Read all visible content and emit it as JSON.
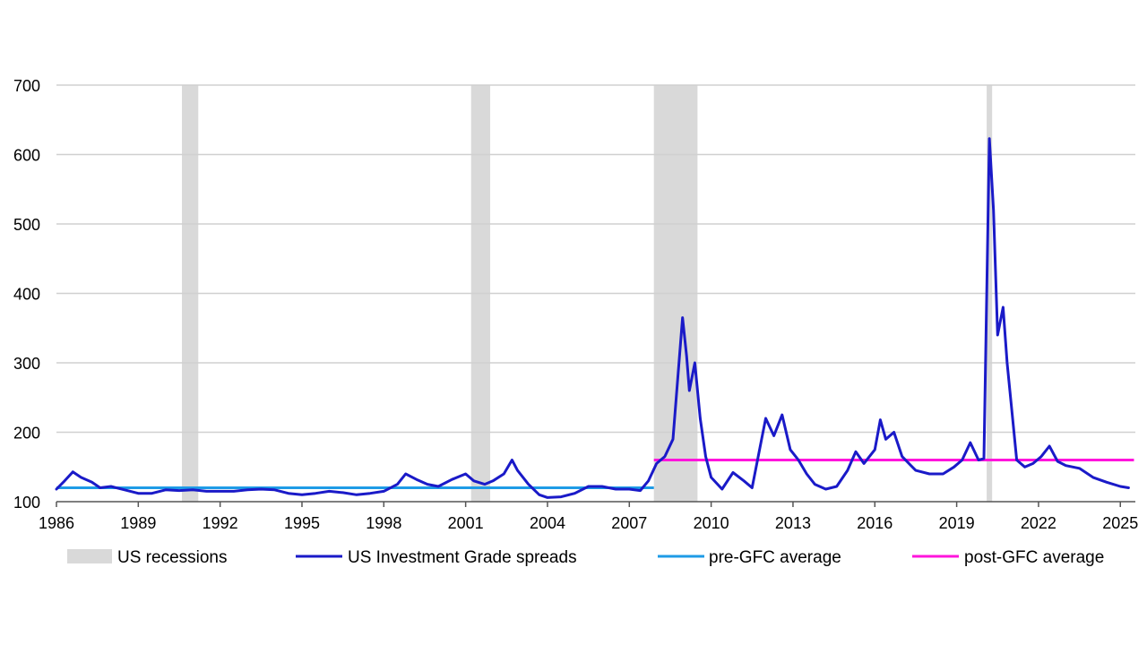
{
  "chart_data": {
    "type": "line",
    "title": "",
    "xlabel": "",
    "ylabel": "",
    "xlim": [
      1986,
      2025.5
    ],
    "ylim": [
      100,
      700
    ],
    "grid": true,
    "legend_position": "bottom",
    "y_ticks": [
      100,
      200,
      300,
      400,
      500,
      600,
      700
    ],
    "x_ticks": [
      1986,
      1989,
      1992,
      1995,
      1998,
      2001,
      2004,
      2007,
      2010,
      2013,
      2016,
      2019,
      2022,
      2025
    ],
    "legend": {
      "recessions": "US recessions",
      "spreads": "US Investment Grade spreads",
      "pre_gfc": "pre-GFC average",
      "post_gfc": "post-GFC average"
    },
    "colors": {
      "recessions": "#d9d9d9",
      "spreads": "#1a1ac8",
      "pre_gfc": "#1e9be6",
      "post_gfc": "#ff14dc",
      "grid": "#d0d0d0",
      "axis": "#555555"
    },
    "recessions": [
      {
        "start": 1990.6,
        "end": 1991.2
      },
      {
        "start": 2001.2,
        "end": 2001.9
      },
      {
        "start": 2007.9,
        "end": 2009.5
      },
      {
        "start": 2020.1,
        "end": 2020.3
      }
    ],
    "pre_gfc_average": {
      "start": 1986.0,
      "end": 2007.9,
      "value": 120
    },
    "post_gfc_average": {
      "start": 2007.9,
      "end": 2025.5,
      "value": 160
    },
    "series": [
      {
        "name": "US Investment Grade spreads",
        "points": [
          [
            1986.0,
            118
          ],
          [
            1986.3,
            130
          ],
          [
            1986.6,
            143
          ],
          [
            1986.9,
            135
          ],
          [
            1987.3,
            128
          ],
          [
            1987.6,
            120
          ],
          [
            1988.0,
            122
          ],
          [
            1988.5,
            117
          ],
          [
            1989.0,
            112
          ],
          [
            1989.5,
            112
          ],
          [
            1990.0,
            117
          ],
          [
            1990.5,
            116
          ],
          [
            1991.0,
            117
          ],
          [
            1991.5,
            115
          ],
          [
            1992.0,
            115
          ],
          [
            1992.5,
            115
          ],
          [
            1993.0,
            117
          ],
          [
            1993.5,
            118
          ],
          [
            1994.0,
            117
          ],
          [
            1994.5,
            112
          ],
          [
            1995.0,
            110
          ],
          [
            1995.5,
            112
          ],
          [
            1996.0,
            115
          ],
          [
            1996.5,
            113
          ],
          [
            1997.0,
            110
          ],
          [
            1997.5,
            112
          ],
          [
            1998.0,
            115
          ],
          [
            1998.5,
            125
          ],
          [
            1998.8,
            140
          ],
          [
            1999.2,
            132
          ],
          [
            1999.6,
            125
          ],
          [
            2000.0,
            122
          ],
          [
            2000.5,
            132
          ],
          [
            2001.0,
            140
          ],
          [
            2001.3,
            130
          ],
          [
            2001.7,
            125
          ],
          [
            2002.0,
            130
          ],
          [
            2002.4,
            140
          ],
          [
            2002.7,
            160
          ],
          [
            2002.9,
            145
          ],
          [
            2003.3,
            125
          ],
          [
            2003.7,
            110
          ],
          [
            2004.0,
            106
          ],
          [
            2004.5,
            107
          ],
          [
            2005.0,
            112
          ],
          [
            2005.5,
            122
          ],
          [
            2006.0,
            122
          ],
          [
            2006.5,
            118
          ],
          [
            2007.0,
            118
          ],
          [
            2007.4,
            116
          ],
          [
            2007.7,
            130
          ],
          [
            2008.0,
            155
          ],
          [
            2008.3,
            165
          ],
          [
            2008.6,
            190
          ],
          [
            2008.8,
            290
          ],
          [
            2008.95,
            365
          ],
          [
            2009.1,
            310
          ],
          [
            2009.2,
            260
          ],
          [
            2009.4,
            300
          ],
          [
            2009.6,
            220
          ],
          [
            2009.8,
            165
          ],
          [
            2010.0,
            135
          ],
          [
            2010.4,
            118
          ],
          [
            2010.8,
            142
          ],
          [
            2011.2,
            130
          ],
          [
            2011.5,
            120
          ],
          [
            2011.8,
            180
          ],
          [
            2012.0,
            220
          ],
          [
            2012.3,
            195
          ],
          [
            2012.6,
            225
          ],
          [
            2012.9,
            175
          ],
          [
            2013.2,
            160
          ],
          [
            2013.5,
            140
          ],
          [
            2013.8,
            125
          ],
          [
            2014.2,
            118
          ],
          [
            2014.6,
            122
          ],
          [
            2015.0,
            145
          ],
          [
            2015.3,
            172
          ],
          [
            2015.6,
            155
          ],
          [
            2016.0,
            175
          ],
          [
            2016.2,
            218
          ],
          [
            2016.4,
            190
          ],
          [
            2016.7,
            200
          ],
          [
            2017.0,
            165
          ],
          [
            2017.5,
            145
          ],
          [
            2018.0,
            140
          ],
          [
            2018.5,
            140
          ],
          [
            2018.9,
            150
          ],
          [
            2019.2,
            160
          ],
          [
            2019.5,
            185
          ],
          [
            2019.8,
            160
          ],
          [
            2020.0,
            162
          ],
          [
            2020.2,
            623
          ],
          [
            2020.35,
            520
          ],
          [
            2020.5,
            340
          ],
          [
            2020.7,
            380
          ],
          [
            2020.85,
            300
          ],
          [
            2021.0,
            240
          ],
          [
            2021.2,
            160
          ],
          [
            2021.5,
            150
          ],
          [
            2021.8,
            155
          ],
          [
            2022.1,
            165
          ],
          [
            2022.4,
            180
          ],
          [
            2022.7,
            158
          ],
          [
            2023.0,
            152
          ],
          [
            2023.5,
            148
          ],
          [
            2024.0,
            135
          ],
          [
            2024.5,
            128
          ],
          [
            2025.0,
            122
          ],
          [
            2025.3,
            120
          ]
        ]
      }
    ]
  }
}
